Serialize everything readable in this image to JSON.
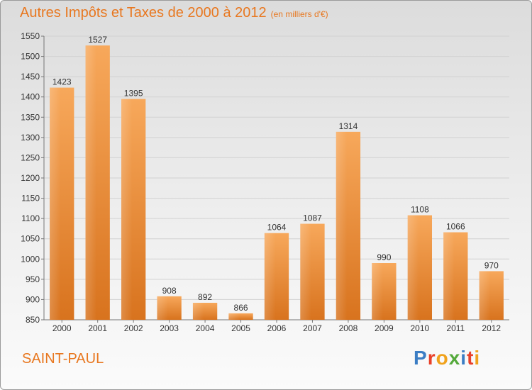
{
  "header": {
    "title": "Autres Impôts et Taxes de 2000 à 2012",
    "unit": "(en milliers d'€)"
  },
  "footer": {
    "place": "SAINT-PAUL",
    "logo": "Proxiti"
  },
  "colors": {
    "title": "#e8771f",
    "bar_light": "#f7a85b",
    "bar_dark": "#d8731e"
  },
  "chart_data": {
    "type": "bar",
    "title": "Autres Impôts et Taxes de 2000 à 2012",
    "categories": [
      "2000",
      "2001",
      "2002",
      "2003",
      "2004",
      "2005",
      "2006",
      "2007",
      "2008",
      "2009",
      "2010",
      "2011",
      "2012"
    ],
    "values": [
      1423,
      1527,
      1395,
      908,
      892,
      866,
      1064,
      1087,
      1314,
      990,
      1108,
      1066,
      970
    ],
    "ylim": [
      850,
      1550
    ],
    "yticks": [
      850,
      900,
      950,
      1000,
      1050,
      1100,
      1150,
      1200,
      1250,
      1300,
      1350,
      1400,
      1450,
      1500,
      1550
    ],
    "grid": true,
    "legend": "none"
  }
}
